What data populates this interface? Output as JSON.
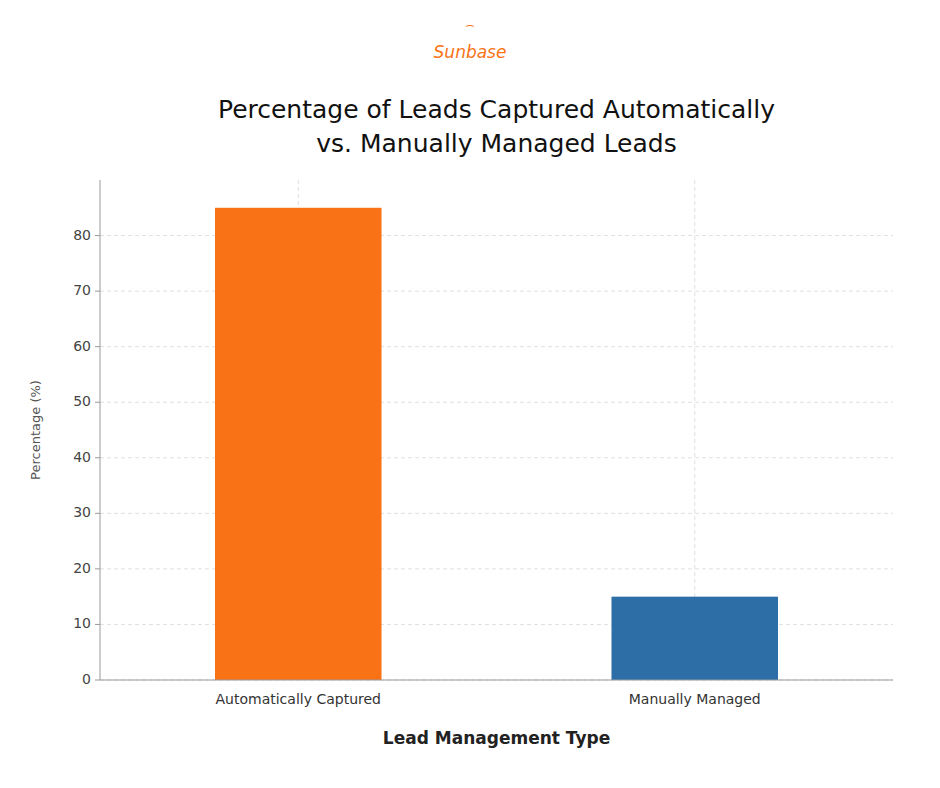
{
  "chart_data": {
    "type": "bar",
    "title": "Percentage of Leads Captured Automatically",
    "subtitle": "vs. Manually Managed Leads",
    "xlabel": "Lead Management Type",
    "ylabel": "Percentage (%)",
    "categories": [
      "Automatically Captured",
      "Manually Managed"
    ],
    "values": [
      85,
      15
    ],
    "colors": [
      "#F97316",
      "#2E6EA6"
    ],
    "ylim": [
      0,
      90
    ],
    "yticks": [
      0,
      10,
      20,
      30,
      40,
      50,
      60,
      70,
      80
    ],
    "grid": true,
    "annotations": [
      {
        "text": "⌢",
        "color": "#F97316"
      },
      {
        "text": "Sunbase",
        "color": "#F97316"
      }
    ]
  }
}
